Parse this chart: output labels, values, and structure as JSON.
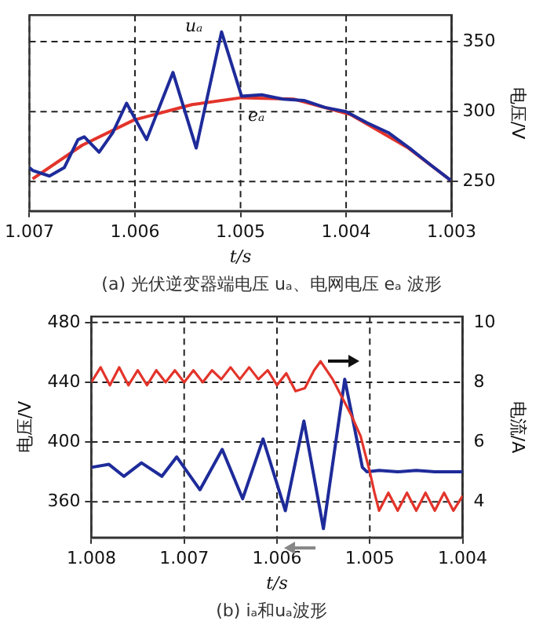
{
  "chart_data": [
    {
      "type": "line",
      "title": "(a) 光伏逆变器端电压 uₐ、电网电压 eₐ 波形",
      "xlabel": "t/s",
      "ylabel": "电压/V",
      "xlim": [
        1.007,
        1.003
      ],
      "xticks": [
        1.007,
        1.006,
        1.005,
        1.004,
        1.003
      ],
      "ylim": [
        229,
        369
      ],
      "yticks": [
        250,
        300,
        350
      ],
      "grid": true,
      "legend": false,
      "line_style": "solid",
      "marker": "none",
      "annotations": [
        {
          "text": "uₐ",
          "x": 1.00518,
          "y": 357
        },
        {
          "text": "eₐ",
          "x": 1.00499,
          "y": 310
        }
      ],
      "series": [
        {
          "color": "#e3342b",
          "x": [
            1.00697,
            1.0065,
            1.00601,
            1.00546,
            1.00499,
            1.0045,
            1.00396,
            1.00341,
            1.00301
          ],
          "values": [
            252,
            276,
            294,
            305,
            310,
            309,
            298,
            274,
            251
          ]
        },
        {
          "color": "#1e2b9a",
          "x": [
            1.007,
            1.00697,
            1.00681,
            1.00667,
            1.00654,
            1.00648,
            1.00634,
            1.00621,
            1.00608,
            1.00589,
            1.00564,
            1.00542,
            1.00518,
            1.00499,
            1.0048,
            1.0046,
            1.0044,
            1.0042,
            1.004,
            1.0038,
            1.0036,
            1.0034,
            1.0032,
            1.00301
          ],
          "values": [
            260,
            258,
            254,
            260,
            280,
            282,
            271,
            285,
            306,
            280,
            328,
            274,
            357,
            311,
            312,
            309,
            308,
            303,
            300,
            292,
            285,
            274,
            262,
            251
          ]
        }
      ]
    },
    {
      "type": "line",
      "title": "(b) iₐ和uₐ波形",
      "xlabel": "t/s",
      "ylabel": "电压/V",
      "y2label": "电流/A",
      "xlim": [
        1.008,
        1.004
      ],
      "xticks": [
        1.008,
        1.007,
        1.006,
        1.005,
        1.004
      ],
      "ylim": [
        336,
        484
      ],
      "yticks": [
        360,
        400,
        440,
        480
      ],
      "y2lim": [
        2.8,
        10.2
      ],
      "y2ticks": [
        4,
        6,
        8,
        10
      ],
      "grid": true,
      "legend": false,
      "line_style": "solid",
      "marker": "none",
      "series": [
        {
          "color": "#1e2b9a",
          "x": [
            1.008,
            1.00781,
            1.00765,
            1.00746,
            1.00724,
            1.00708,
            1.00683,
            1.00659,
            1.00637,
            1.00615,
            1.00591,
            1.00571,
            1.0055,
            1.00527,
            1.00508,
            1.00503,
            1.0049,
            1.0047,
            1.0045,
            1.0043,
            1.004
          ],
          "values": [
            383,
            385,
            377,
            386,
            377,
            390,
            368,
            395,
            362,
            402,
            354,
            414,
            342,
            442,
            383,
            380,
            381,
            380,
            381,
            380,
            380
          ]
        },
        {
          "color": "#e3342b",
          "axis": "y2",
          "x": [
            1.008,
            1.0079,
            1.0078,
            1.0077,
            1.0076,
            1.0075,
            1.0074,
            1.0073,
            1.0072,
            1.0071,
            1.007,
            1.0069,
            1.0068,
            1.0067,
            1.0066,
            1.0065,
            1.0064,
            1.0063,
            1.0062,
            1.0061,
            1.006,
            1.0059,
            1.0058,
            1.0057,
            1.0056,
            1.00553,
            1.0054,
            1.0053,
            1.0052,
            1.0051,
            1.005,
            1.00495,
            1.0049,
            1.0048,
            1.0047,
            1.0046,
            1.0045,
            1.0044,
            1.0043,
            1.0042,
            1.0041,
            1.004
          ],
          "values": [
            8.0,
            8.5,
            7.9,
            8.5,
            7.9,
            8.4,
            7.9,
            8.4,
            8.0,
            8.4,
            8.0,
            8.4,
            8.0,
            8.4,
            8.1,
            8.5,
            8.1,
            8.5,
            8.1,
            8.4,
            7.9,
            8.3,
            7.7,
            7.8,
            8.4,
            8.7,
            8.1,
            7.5,
            6.9,
            6.2,
            5.0,
            4.3,
            3.7,
            4.3,
            3.7,
            4.3,
            3.7,
            4.3,
            3.7,
            4.3,
            3.7,
            4.2
          ]
        }
      ]
    }
  ]
}
